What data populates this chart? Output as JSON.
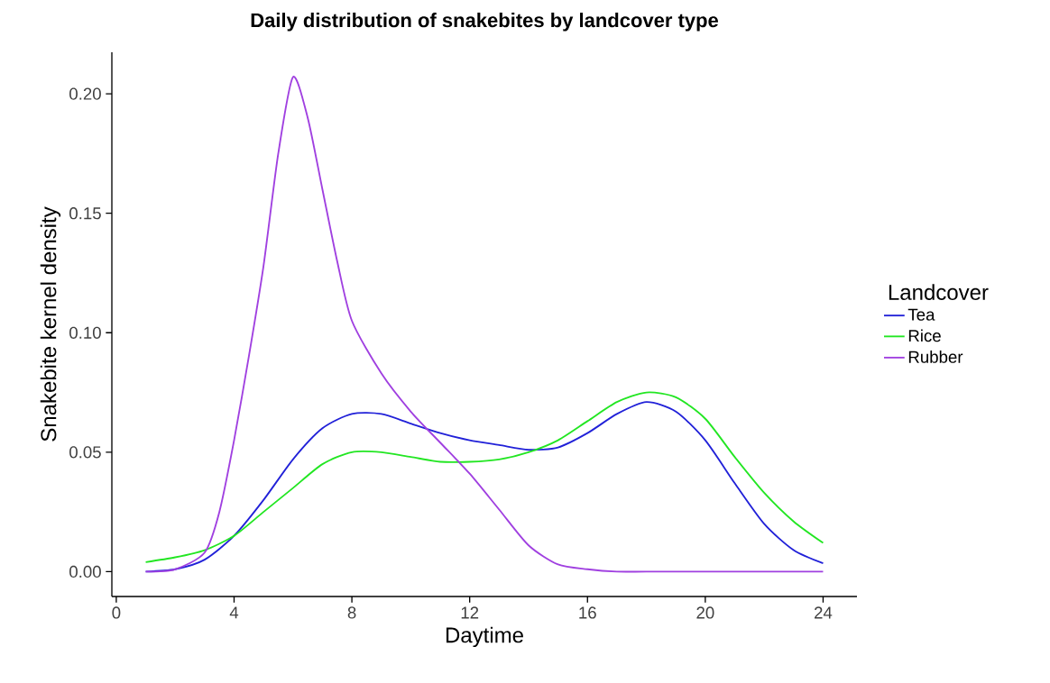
{
  "chart_data": {
    "type": "line",
    "title": "Daily distribution of snakebites by landcover type",
    "xlabel": "Daytime",
    "ylabel": "Snakebite kernel density",
    "legend_title": "Landcover",
    "legend": "right",
    "grid": false,
    "marker": "none",
    "line_style": "solid",
    "x": [
      1,
      2,
      3,
      4,
      5,
      6,
      7,
      8,
      9,
      10,
      11,
      12,
      13,
      14,
      15,
      16,
      17,
      18,
      19,
      20,
      21,
      22,
      23,
      24
    ],
    "xlim": [
      -0.15,
      25.15
    ],
    "ylim": [
      -0.0104,
      0.2174
    ],
    "xticks": [
      0,
      4,
      8,
      12,
      16,
      20,
      24
    ],
    "yticks": [
      {
        "value": 0,
        "label": "0.00"
      },
      {
        "value": 0.05,
        "label": "0.05"
      },
      {
        "value": 0.1,
        "label": "0.10"
      },
      {
        "value": 0.15,
        "label": "0.15"
      },
      {
        "value": 0.2,
        "label": "0.20"
      }
    ],
    "series": [
      {
        "name": "Tea",
        "color": "#2121d8",
        "values": [
          0.0,
          0.001,
          0.005,
          0.015,
          0.03,
          0.047,
          0.06,
          0.066,
          0.066,
          0.062,
          0.058,
          0.055,
          0.053,
          0.051,
          0.052,
          0.058,
          0.066,
          0.071,
          0.067,
          0.055,
          0.037,
          0.02,
          0.009,
          0.0035
        ]
      },
      {
        "name": "Rice",
        "color": "#22e622",
        "values": [
          0.004,
          0.006,
          0.009,
          0.015,
          0.025,
          0.035,
          0.045,
          0.05,
          0.05,
          0.048,
          0.046,
          0.046,
          0.047,
          0.05,
          0.055,
          0.063,
          0.071,
          0.075,
          0.073,
          0.064,
          0.048,
          0.033,
          0.021,
          0.012
        ]
      },
      {
        "name": "Rubber",
        "color": "#a040e0",
        "x": [
          1,
          2,
          3,
          3.5,
          4,
          4.5,
          5,
          5.5,
          6,
          6.5,
          7,
          7.5,
          8,
          9,
          10,
          11,
          12,
          13,
          14,
          15,
          16,
          17,
          18,
          20,
          22,
          24
        ],
        "values": [
          0.0,
          0.001,
          0.008,
          0.025,
          0.055,
          0.09,
          0.128,
          0.175,
          0.207,
          0.19,
          0.16,
          0.13,
          0.105,
          0.083,
          0.067,
          0.054,
          0.041,
          0.026,
          0.011,
          0.003,
          0.001,
          0.0,
          0.0,
          0.0,
          0.0,
          0.0
        ]
      }
    ]
  }
}
